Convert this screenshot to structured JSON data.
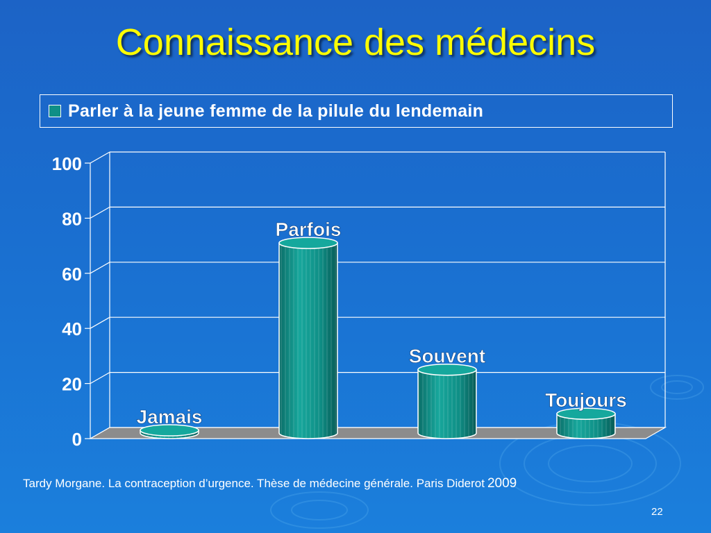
{
  "slide": {
    "title": "Connaissance des médecins",
    "citation": "Tardy Morgane. La contraception d’urgence. Thèse de médecine générale. Paris Diderot",
    "year": "2009",
    "page_number": "22"
  },
  "colors": {
    "background": "#1a6fd0",
    "title": "#ffff00",
    "bar": "#0f8f86",
    "floor": "#8c8c8c",
    "text": "#ffffff"
  },
  "chart_data": {
    "type": "bar",
    "style": "3d-cylinder",
    "legend": [
      "Parler à la jeune femme de la pilule du lendemain"
    ],
    "legend_position": "top",
    "categories": [
      "Jamais",
      "Parfois",
      "Souvent",
      "Toujours"
    ],
    "series": [
      {
        "name": "Parler à la jeune femme de la pilule du lendemain",
        "values": [
          1,
          69,
          23,
          7
        ]
      }
    ],
    "data_labels": [
      "Jamais",
      "Parfois",
      "Souvent",
      "Toujours"
    ],
    "y_ticks": [
      0,
      20,
      40,
      60,
      80,
      100
    ],
    "ylim": [
      0,
      100
    ],
    "grid": true,
    "xlabel": "",
    "ylabel": ""
  }
}
